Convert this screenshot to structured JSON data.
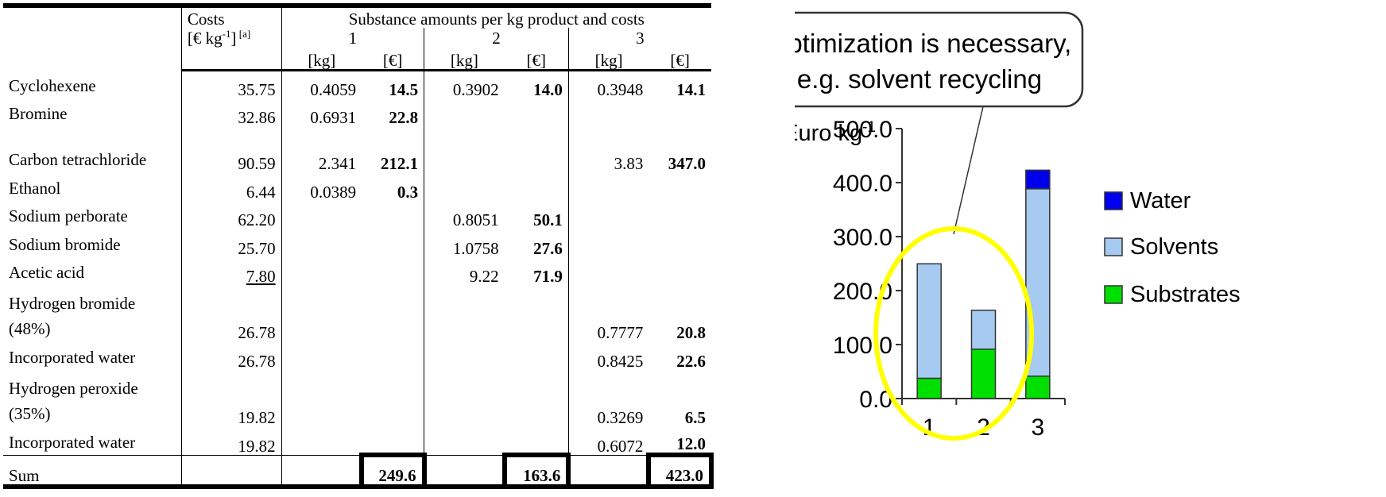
{
  "table": {
    "header": {
      "costs_label": "Costs",
      "costs_unit": "[€ kg",
      "costs_unit_sup": "-1",
      "costs_unit_close": "]",
      "costs_note": " [a]",
      "group_label": "Substance amounts per  kg product and costs",
      "routes": [
        "1",
        "2",
        "3"
      ],
      "unit_kg": "[kg]",
      "unit_eur": "[€]"
    },
    "rows": [
      {
        "name": "Cyclohexene",
        "cost": "35.75",
        "kg1": "0.4059",
        "eur1": "14.5",
        "kg2": "0.3902",
        "eur2": "14.0",
        "kg3": "0.3948",
        "eur3": "14.1"
      },
      {
        "name": "Bromine",
        "cost": "32.86",
        "kg1": "0.6931",
        "eur1": "22.8",
        "kg2": "",
        "eur2": "",
        "kg3": "",
        "eur3": ""
      },
      {
        "name": "Carbon tetrachloride",
        "cost": "90.59",
        "kg1": "2.341",
        "eur1": "212.1",
        "kg2": "",
        "eur2": "",
        "kg3": "3.83",
        "eur3": "347.0"
      },
      {
        "name": "Ethanol",
        "cost": "6.44",
        "kg1": "0.0389",
        "eur1": "0.3",
        "kg2": "",
        "eur2": "",
        "kg3": "",
        "eur3": ""
      },
      {
        "name": "Sodium perborate",
        "cost": "62.20",
        "kg1": "",
        "eur1": "",
        "kg2": "0.8051",
        "eur2": "50.1",
        "kg3": "",
        "eur3": ""
      },
      {
        "name": "Sodium bromide",
        "cost": "25.70",
        "kg1": "",
        "eur1": "",
        "kg2": "1.0758",
        "eur2": "27.6",
        "kg3": "",
        "eur3": ""
      },
      {
        "name": "Acetic acid",
        "cost": "7.80",
        "kg1": "",
        "eur1": "",
        "kg2": "9.22",
        "eur2": "71.9",
        "kg3": "",
        "eur3": ""
      },
      {
        "name": "Hydrogen bromide (48%)",
        "cost": "26.78",
        "kg1": "",
        "eur1": "",
        "kg2": "",
        "eur2": "",
        "kg3": "0.7777",
        "eur3": "20.8"
      },
      {
        "name": "Incorporated water",
        "cost": "26.78",
        "kg1": "",
        "eur1": "",
        "kg2": "",
        "eur2": "",
        "kg3": "0.8425",
        "eur3": "22.6"
      },
      {
        "name": "Hydrogen peroxide (35%)",
        "cost": "19.82",
        "kg1": "",
        "eur1": "",
        "kg2": "",
        "eur2": "",
        "kg3": "0.3269",
        "eur3": "6.5"
      },
      {
        "name": "Incorporated water",
        "cost": "19.82",
        "kg1": "",
        "eur1": "",
        "kg2": "",
        "eur2": "",
        "kg3": "0.6072",
        "eur3": "12.0"
      }
    ],
    "sum": {
      "label": "Sum",
      "eur1": "249.6",
      "eur2": "163.6",
      "eur3": "423.0"
    }
  },
  "chart_data": {
    "type": "bar",
    "stacked": true,
    "categories": [
      "1",
      "2",
      "3"
    ],
    "series": [
      {
        "name": "Substrates",
        "color": "#00e000",
        "values": [
          37.6,
          91.5,
          41.5
        ]
      },
      {
        "name": "Solvents",
        "color": "#a6caf0",
        "values": [
          212.0,
          72.1,
          347.0
        ]
      },
      {
        "name": "Water",
        "color": "#0000ee",
        "values": [
          0,
          0,
          34.5
        ]
      }
    ],
    "ylabel": "Euro kg",
    "ylabel_sup": "-1",
    "ylim": [
      0,
      500
    ],
    "yticks": [
      0,
      100,
      200,
      300,
      400,
      500
    ],
    "ytick_labels": [
      "0.0",
      "100.0",
      "200.0",
      "300.0",
      "400.0",
      "500.0"
    ],
    "legend": [
      "Water",
      "Solvents",
      "Substrates"
    ],
    "legend_position": "right",
    "callout": {
      "lines": [
        "Optimization is necessary,",
        "e.g. solvent  recycling"
      ]
    },
    "highlight_color": "#ffff00"
  }
}
